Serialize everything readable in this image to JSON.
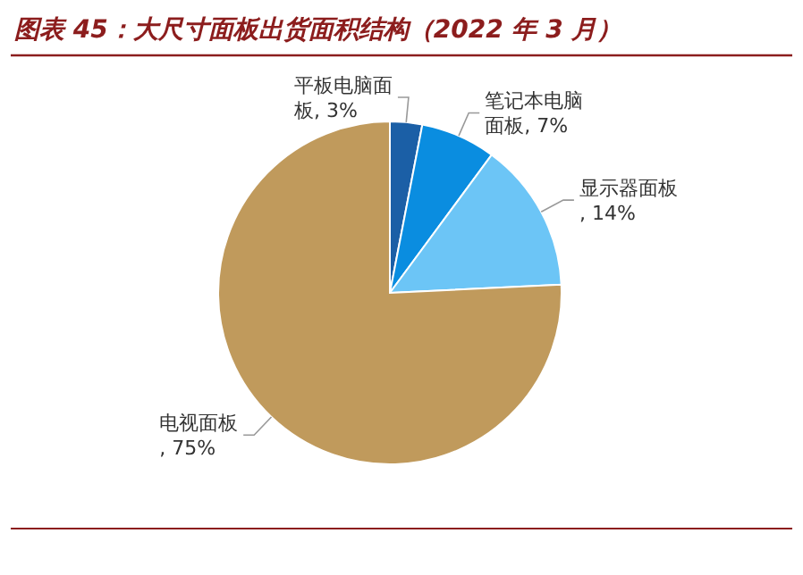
{
  "chart_data": {
    "type": "pie",
    "title": "图表 45：大尺寸面板出货面积结构（2022 年 3 月）",
    "categories": [
      "平板电脑面板",
      "笔记本电脑面板",
      "显示器面板",
      "电视面板"
    ],
    "values": [
      3,
      7,
      14,
      75
    ],
    "colors": [
      "#1b5fa6",
      "#0a8de0",
      "#6cc5f6",
      "#c09a5c"
    ],
    "value_labels": [
      ", 3%",
      ", 7%",
      ", 14%",
      ", 75%"
    ]
  }
}
